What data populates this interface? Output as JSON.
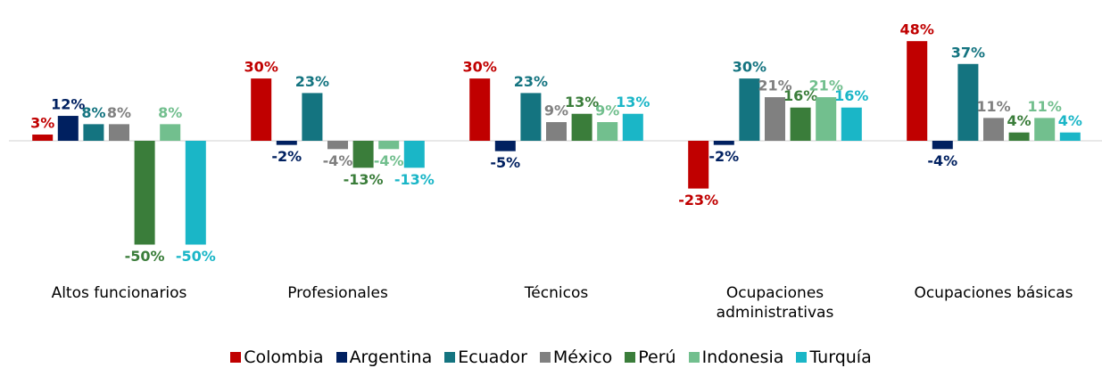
{
  "chart_data": {
    "type": "bar",
    "categories": [
      "Altos funcionarios",
      "Profesionales",
      "Técnicos",
      "Ocupaciones administrativas",
      "Ocupaciones básicas"
    ],
    "series": [
      {
        "name": "Colombia",
        "color": "#c00000",
        "values": [
          3,
          30,
          30,
          -23,
          48
        ],
        "value_labels": [
          "3%",
          "30%",
          "30%",
          "-23%",
          "48%"
        ]
      },
      {
        "name": "Argentina",
        "color": "#002060",
        "values": [
          12,
          -2,
          -5,
          -2,
          -4
        ],
        "value_labels": [
          "12%",
          "-2%",
          "-5%",
          "-2%",
          "-4%"
        ]
      },
      {
        "name": "Ecuador",
        "color": "#147480",
        "values": [
          8,
          23,
          23,
          30,
          37
        ],
        "value_labels": [
          "8%",
          "23%",
          "23%",
          "30%",
          "37%"
        ]
      },
      {
        "name": "México",
        "color": "#808080",
        "values": [
          8,
          -4,
          9,
          21,
          11
        ],
        "value_labels": [
          "8%",
          "-4%",
          "9%",
          "21%",
          "11%"
        ]
      },
      {
        "name": "Perú",
        "color": "#3a7d3a",
        "values": [
          -50,
          -13,
          13,
          16,
          4
        ],
        "value_labels": [
          "-50%",
          "-13%",
          "13%",
          "16%",
          "4%"
        ]
      },
      {
        "name": "Indonesia",
        "color": "#72bf8e",
        "values": [
          8,
          -4,
          9,
          21,
          11
        ],
        "value_labels": [
          "8%",
          "-4%",
          "9%",
          "21%",
          "11%"
        ]
      },
      {
        "name": "Turquía",
        "color": "#1ab6c7",
        "values": [
          -50,
          -13,
          13,
          16,
          4
        ],
        "value_labels": [
          "-50%",
          "-13%",
          "13%",
          "16%",
          "4%"
        ]
      }
    ]
  }
}
